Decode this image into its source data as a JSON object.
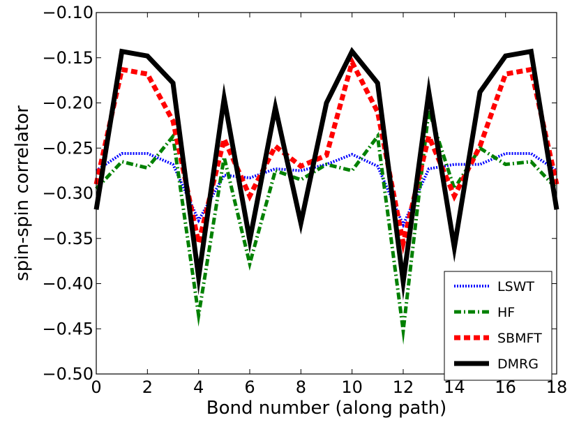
{
  "chart_data": {
    "type": "line",
    "xlabel": "Bond number (along path)",
    "ylabel": "spin-spin correlator",
    "xlim": [
      0,
      18
    ],
    "ylim": [
      -0.5,
      -0.1
    ],
    "xticks": [
      0,
      2,
      4,
      6,
      8,
      10,
      12,
      14,
      16,
      18
    ],
    "xtick_labels": [
      "0",
      "2",
      "4",
      "6",
      "8",
      "10",
      "12",
      "14",
      "16",
      "18"
    ],
    "yticks": [
      -0.1,
      -0.15,
      -0.2,
      -0.25,
      -0.3,
      -0.35,
      -0.4,
      -0.45,
      -0.5
    ],
    "ytick_labels": [
      "−0.10",
      "−0.15",
      "−0.20",
      "−0.25",
      "−0.30",
      "−0.35",
      "−0.40",
      "−0.45",
      "−0.50"
    ],
    "grid": false,
    "legend_position": "bottom-right",
    "x": [
      0,
      1,
      2,
      3,
      4,
      5,
      6,
      7,
      8,
      9,
      10,
      11,
      12,
      13,
      14,
      15,
      16,
      17,
      18
    ],
    "series": [
      {
        "name": "LSWT",
        "color": "#0000ff",
        "style": "dotted",
        "values": [
          -0.275,
          -0.256,
          -0.256,
          -0.268,
          -0.33,
          -0.28,
          -0.283,
          -0.273,
          -0.275,
          -0.268,
          -0.257,
          -0.27,
          -0.335,
          -0.273,
          -0.268,
          -0.268,
          -0.256,
          -0.256,
          -0.275
        ]
      },
      {
        "name": "HF",
        "color": "#008000",
        "style": "dashdot",
        "values": [
          -0.295,
          -0.265,
          -0.272,
          -0.237,
          -0.435,
          -0.26,
          -0.378,
          -0.275,
          -0.285,
          -0.268,
          -0.275,
          -0.237,
          -0.452,
          -0.208,
          -0.295,
          -0.25,
          -0.268,
          -0.265,
          -0.295
        ]
      },
      {
        "name": "SBMFT",
        "color": "#ff0000",
        "style": "dashed",
        "values": [
          -0.29,
          -0.163,
          -0.168,
          -0.22,
          -0.355,
          -0.24,
          -0.303,
          -0.248,
          -0.27,
          -0.258,
          -0.155,
          -0.21,
          -0.355,
          -0.237,
          -0.303,
          -0.248,
          -0.168,
          -0.163,
          -0.29
        ]
      },
      {
        "name": "DMRG",
        "color": "#000000",
        "style": "solid",
        "values": [
          -0.318,
          -0.143,
          -0.148,
          -0.178,
          -0.393,
          -0.195,
          -0.352,
          -0.205,
          -0.333,
          -0.2,
          -0.143,
          -0.178,
          -0.398,
          -0.188,
          -0.36,
          -0.188,
          -0.148,
          -0.143,
          -0.318
        ]
      }
    ]
  }
}
